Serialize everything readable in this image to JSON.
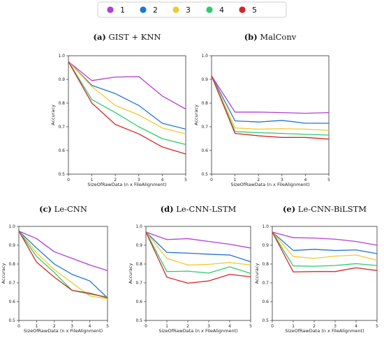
{
  "chart_data": {
    "legend": {
      "placement": "top-center",
      "entries": [
        {
          "label": "1",
          "color": "#b23fd6"
        },
        {
          "label": "2",
          "color": "#1f77d4"
        },
        {
          "label": "3",
          "color": "#f2c92e"
        },
        {
          "label": "4",
          "color": "#2ecc71"
        },
        {
          "label": "5",
          "color": "#d62728"
        }
      ]
    },
    "panels": [
      {
        "type": "line",
        "title_prefix": "(a)",
        "title_text": "GIST + KNN",
        "xlabel": "SizeOfRawData (n x FileAlignment)",
        "ylabel": "Accuracy",
        "xlim": [
          0,
          5
        ],
        "ylim": [
          0.5,
          1.0
        ],
        "xticks": [
          0,
          1,
          2,
          3,
          4,
          5
        ],
        "yticks": [
          "0.5",
          "0.6",
          "0.7",
          "0.8",
          "0.9",
          "1.0"
        ],
        "x": [
          0,
          1,
          2,
          3,
          4,
          5
        ],
        "series": [
          {
            "name": "1",
            "values": [
              0.975,
              0.895,
              0.91,
              0.912,
              0.83,
              0.775
            ]
          },
          {
            "name": "2",
            "values": [
              0.975,
              0.875,
              0.84,
              0.79,
              0.715,
              0.69
            ]
          },
          {
            "name": "3",
            "values": [
              0.975,
              0.87,
              0.79,
              0.75,
              0.695,
              0.67
            ]
          },
          {
            "name": "4",
            "values": [
              0.975,
              0.815,
              0.76,
              0.7,
              0.65,
              0.625
            ]
          },
          {
            "name": "5",
            "values": [
              0.975,
              0.8,
              0.71,
              0.67,
              0.615,
              0.585
            ]
          }
        ]
      },
      {
        "type": "line",
        "title_prefix": "(b)",
        "title_text": "MalConv",
        "xlabel": "SizeOfRawData (n x FileAlignment)",
        "ylabel": "Accuracy",
        "xlim": [
          0,
          5
        ],
        "ylim": [
          0.5,
          1.0
        ],
        "xticks": [
          0,
          1,
          2,
          3,
          4,
          5
        ],
        "yticks": [
          "0.5",
          "0.6",
          "0.7",
          "0.8",
          "0.9",
          "1.0"
        ],
        "x": [
          0,
          1,
          2,
          3,
          4,
          5
        ],
        "series": [
          {
            "name": "1",
            "values": [
              0.915,
              0.762,
              0.762,
              0.76,
              0.757,
              0.76
            ]
          },
          {
            "name": "2",
            "values": [
              0.915,
              0.725,
              0.72,
              0.727,
              0.715,
              0.715
            ]
          },
          {
            "name": "3",
            "values": [
              0.915,
              0.695,
              0.69,
              0.692,
              0.69,
              0.685
            ]
          },
          {
            "name": "4",
            "values": [
              0.915,
              0.68,
              0.675,
              0.672,
              0.668,
              0.665
            ]
          },
          {
            "name": "5",
            "values": [
              0.915,
              0.672,
              0.662,
              0.655,
              0.655,
              0.648
            ]
          }
        ]
      },
      {
        "type": "line",
        "title_prefix": "(c)",
        "title_text": "Le-CNN",
        "xlabel": "SizeOfRawData (n x FileAlignment)",
        "ylabel": "Accuracy",
        "xlim": [
          0,
          5
        ],
        "ylim": [
          0.5,
          1.0
        ],
        "xticks": [
          0,
          1,
          2,
          3,
          4,
          5
        ],
        "yticks": [
          "0.5",
          "0.6",
          "0.7",
          "0.8",
          "0.9",
          "1.0"
        ],
        "x": [
          0,
          1,
          2,
          3,
          4,
          5
        ],
        "series": [
          {
            "name": "1",
            "values": [
              0.975,
              0.935,
              0.865,
              0.83,
              0.795,
              0.765
            ]
          },
          {
            "name": "2",
            "values": [
              0.975,
              0.885,
              0.8,
              0.745,
              0.71,
              0.62
            ]
          },
          {
            "name": "3",
            "values": [
              0.975,
              0.86,
              0.77,
              0.7,
              0.63,
              0.615
            ]
          },
          {
            "name": "4",
            "values": [
              0.975,
              0.84,
              0.755,
              0.66,
              0.64,
              0.625
            ]
          },
          {
            "name": "5",
            "values": [
              0.975,
              0.81,
              0.73,
              0.66,
              0.645,
              0.62
            ]
          }
        ]
      },
      {
        "type": "line",
        "title_prefix": "(d)",
        "title_text": "Le-CNN-LSTM",
        "xlabel": "SizeOfRawData (n x FileAlignment)",
        "ylabel": "Accuracy",
        "xlim": [
          0,
          5
        ],
        "ylim": [
          0.5,
          1.0
        ],
        "xticks": [
          0,
          1,
          2,
          3,
          4,
          5
        ],
        "yticks": [
          "0.5",
          "0.6",
          "0.7",
          "0.8",
          "0.9",
          "1.0"
        ],
        "x": [
          0,
          1,
          2,
          3,
          4,
          5
        ],
        "series": [
          {
            "name": "1",
            "values": [
              0.97,
              0.93,
              0.935,
              0.92,
              0.905,
              0.885
            ]
          },
          {
            "name": "2",
            "values": [
              0.97,
              0.862,
              0.858,
              0.852,
              0.848,
              0.812
            ]
          },
          {
            "name": "3",
            "values": [
              0.97,
              0.83,
              0.795,
              0.798,
              0.808,
              0.795
            ]
          },
          {
            "name": "4",
            "values": [
              0.97,
              0.76,
              0.762,
              0.752,
              0.785,
              0.75
            ]
          },
          {
            "name": "5",
            "values": [
              0.97,
              0.73,
              0.698,
              0.71,
              0.745,
              0.732
            ]
          }
        ]
      },
      {
        "type": "line",
        "title_prefix": "(e)",
        "title_text": "Le-CNN-BiLSTM",
        "xlabel": "SizeOfRawData (n x FileAlignment)",
        "ylabel": "Accuracy",
        "xlim": [
          0,
          5
        ],
        "ylim": [
          0.5,
          1.0
        ],
        "xticks": [
          0,
          1,
          2,
          3,
          4,
          5
        ],
        "yticks": [
          "0.5",
          "0.6",
          "0.7",
          "0.8",
          "0.9",
          "1.0"
        ],
        "x": [
          0,
          1,
          2,
          3,
          4,
          5
        ],
        "series": [
          {
            "name": "1",
            "values": [
              0.97,
              0.94,
              0.938,
              0.932,
              0.92,
              0.9
            ]
          },
          {
            "name": "2",
            "values": [
              0.97,
              0.872,
              0.878,
              0.872,
              0.875,
              0.855
            ]
          },
          {
            "name": "3",
            "values": [
              0.97,
              0.84,
              0.83,
              0.842,
              0.848,
              0.82
            ]
          },
          {
            "name": "4",
            "values": [
              0.97,
              0.79,
              0.788,
              0.792,
              0.802,
              0.792
            ]
          },
          {
            "name": "5",
            "values": [
              0.97,
              0.758,
              0.76,
              0.76,
              0.78,
              0.765
            ]
          }
        ]
      }
    ]
  }
}
